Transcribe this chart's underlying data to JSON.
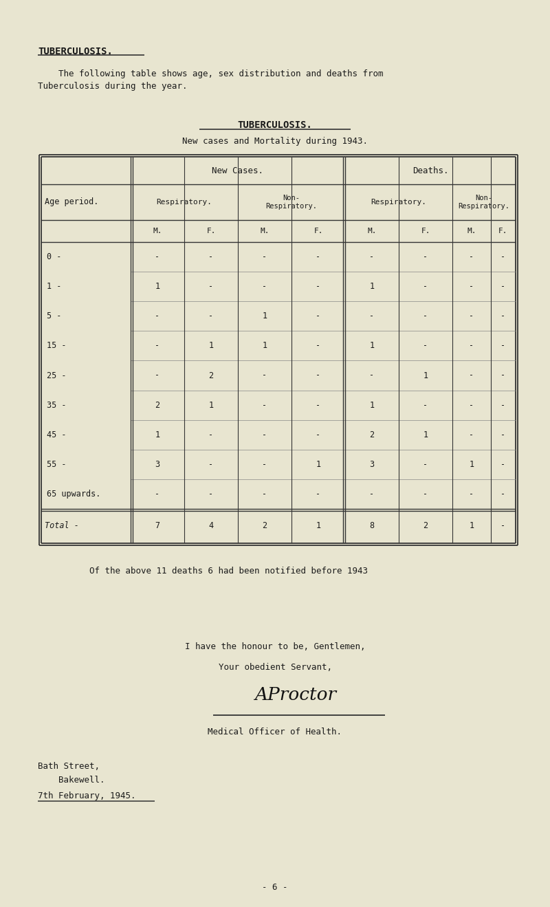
{
  "bg_color": "#e8e5d0",
  "text_color": "#1a1a1a",
  "title1": "TUBERCULOSIS.",
  "intro_line1": "    The following table shows age, sex distribution and deaths from",
  "intro_line2": "Tuberculosis during the year.",
  "table_title": "TUBERCULOSIS.",
  "table_subtitle": "New cases and Mortality during 1943.",
  "rows": [
    [
      "0 -",
      "-",
      "-",
      "-",
      "-",
      "-",
      "-",
      "-",
      "-"
    ],
    [
      "1 -",
      "1",
      "-",
      "-",
      "-",
      "1",
      "-",
      "-",
      "-"
    ],
    [
      "5 -",
      "-",
      "-",
      "1",
      "-",
      "-",
      "-",
      "-",
      "-"
    ],
    [
      "15 -",
      "-",
      "1",
      "1",
      "-",
      "1",
      "-",
      "-",
      "-"
    ],
    [
      "25 -",
      "-",
      "2",
      "-",
      "-",
      "-",
      "1",
      "-",
      "-"
    ],
    [
      "35 -",
      "2",
      "1",
      "-",
      "-",
      "1",
      "-",
      "-",
      "-"
    ],
    [
      "45 -",
      "1",
      "-",
      "-",
      "-",
      "2",
      "1",
      "-",
      "-"
    ],
    [
      "55 -",
      "3",
      "-",
      "-",
      "1",
      "3",
      "-",
      "1",
      "-"
    ],
    [
      "65 upwards.",
      "-",
      "-",
      "-",
      "-",
      "-",
      "-",
      "-",
      "-"
    ]
  ],
  "total_row": [
    "Total -",
    "7",
    "4",
    "2",
    "1",
    "8",
    "2",
    "1",
    "-"
  ],
  "note": "Of the above 11 deaths 6 had been notified before 1943",
  "closing1": "I have the honour to be, Gentlemen,",
  "closing2": "Your obedient Servant,",
  "title_medical": "Medical Officer of Health.",
  "address1": "Bath Street,",
  "address2": "    Bakewell.",
  "date": "7th February, 1945.",
  "page_num": "- 6 -"
}
